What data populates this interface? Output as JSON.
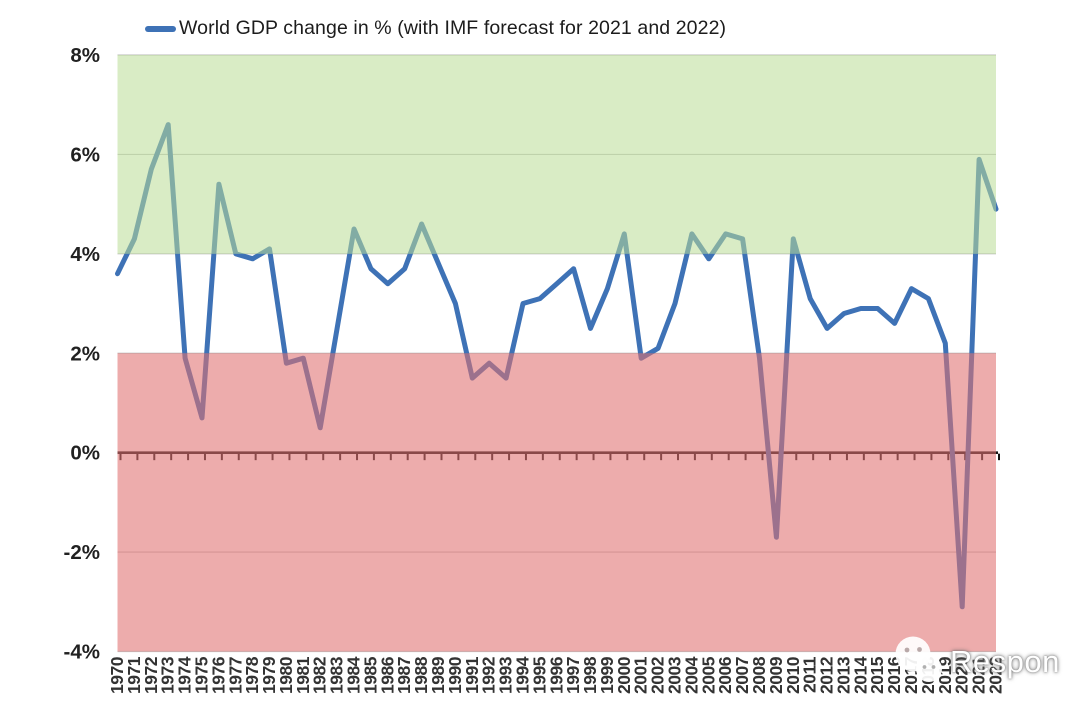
{
  "legend": {
    "label": "World GDP change in % (with IMF forecast for 2021 and 2022)"
  },
  "watermark": {
    "icon": "wechat-icon",
    "text": "Respon"
  },
  "colors": {
    "line": "#3e72b6",
    "green_band": "rgba(185,221,150,0.55)",
    "red_band": "rgba(224,112,112,0.58)",
    "gridline": "#c6c6c6",
    "zero_axis": "#141414",
    "axis_label": "#212121",
    "year_label": "#333333"
  },
  "chart_data": {
    "type": "line",
    "title": "World GDP change in % (with IMF forecast for 2021 and 2022)",
    "legend_position": "top-left",
    "grid": true,
    "ylim": [
      -4,
      8
    ],
    "y_ticks": [
      8,
      6,
      4,
      2,
      0,
      -2,
      -4
    ],
    "y_tick_labels": [
      "8%",
      "6%",
      "4%",
      "2%",
      "0%",
      "-2%",
      "-4%"
    ],
    "bands": [
      {
        "name": "green-zone",
        "from": 4,
        "to": 8
      },
      {
        "name": "red-zone",
        "from": -4,
        "to": 2
      }
    ],
    "x": [
      1970,
      1971,
      1972,
      1973,
      1974,
      1975,
      1976,
      1977,
      1978,
      1979,
      1980,
      1981,
      1982,
      1983,
      1984,
      1985,
      1986,
      1987,
      1988,
      1989,
      1990,
      1991,
      1992,
      1993,
      1994,
      1995,
      1996,
      1997,
      1998,
      1999,
      2000,
      2001,
      2002,
      2003,
      2004,
      2005,
      2006,
      2007,
      2008,
      2009,
      2010,
      2011,
      2012,
      2013,
      2014,
      2015,
      2016,
      2017,
      2018,
      2019,
      2020,
      2021,
      2022
    ],
    "values": [
      3.6,
      4.3,
      5.7,
      6.6,
      1.9,
      0.7,
      5.4,
      4.0,
      3.9,
      4.1,
      1.8,
      1.9,
      0.5,
      2.5,
      4.5,
      3.7,
      3.4,
      3.7,
      4.6,
      3.8,
      3.0,
      1.5,
      1.8,
      1.5,
      3.0,
      3.1,
      3.4,
      3.7,
      2.5,
      3.3,
      4.4,
      1.9,
      2.1,
      3.0,
      4.4,
      3.9,
      4.4,
      4.3,
      1.9,
      -1.7,
      4.3,
      3.1,
      2.5,
      2.8,
      2.9,
      2.9,
      2.6,
      3.3,
      3.1,
      2.2,
      -3.1,
      5.9,
      4.9
    ],
    "series_name": "World GDP change in % (with IMF forecast for 2021 and 2022)"
  }
}
